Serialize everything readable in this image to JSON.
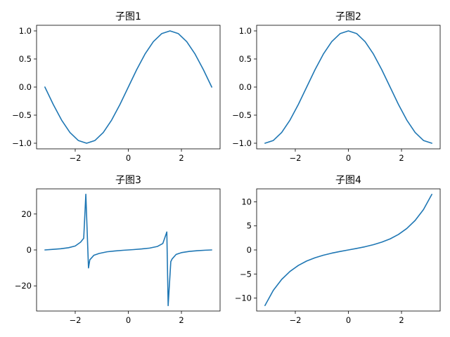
{
  "line_color": "#1f77b4",
  "chart_data": [
    {
      "type": "line",
      "title": "子图1",
      "function": "sin(x)",
      "xlim": [
        -3.4557,
        3.4557
      ],
      "ylim": [
        -1.1,
        1.1
      ],
      "xticks": [
        -2,
        0,
        2
      ],
      "yticks": [
        -1.0,
        -0.5,
        0.0,
        0.5,
        1.0
      ],
      "ytick_labels": [
        "−1.0",
        "−0.5",
        "0.0",
        "0.5",
        "1.0"
      ],
      "grid": false,
      "x": [
        -3.1416,
        -2.8274,
        -2.5133,
        -2.1991,
        -1.885,
        -1.5708,
        -1.2566,
        -0.9425,
        -0.6283,
        -0.3142,
        0.0,
        0.3142,
        0.6283,
        0.9425,
        1.2566,
        1.5708,
        1.885,
        2.1991,
        2.5133,
        2.8274,
        3.1416
      ],
      "y": [
        0.0,
        -0.309,
        -0.5878,
        -0.809,
        -0.9511,
        -1.0,
        -0.9511,
        -0.809,
        -0.5878,
        -0.309,
        0.0,
        0.309,
        0.5878,
        0.809,
        0.9511,
        1.0,
        0.9511,
        0.809,
        0.5878,
        0.309,
        0.0
      ]
    },
    {
      "type": "line",
      "title": "子图2",
      "function": "cos(x)",
      "xlim": [
        -3.4557,
        3.4557
      ],
      "ylim": [
        -1.1,
        1.1
      ],
      "xticks": [
        -2,
        0,
        2
      ],
      "yticks": [
        -1.0,
        -0.5,
        0.0,
        0.5,
        1.0
      ],
      "ytick_labels": [
        "−1.0",
        "−0.5",
        "0.0",
        "0.5",
        "1.0"
      ],
      "grid": false,
      "x": [
        -3.1416,
        -2.8274,
        -2.5133,
        -2.1991,
        -1.885,
        -1.5708,
        -1.2566,
        -0.9425,
        -0.6283,
        -0.3142,
        0.0,
        0.3142,
        0.6283,
        0.9425,
        1.2566,
        1.5708,
        1.885,
        2.1991,
        2.5133,
        2.8274,
        3.1416
      ],
      "y": [
        -1.0,
        -0.9511,
        -0.809,
        -0.5878,
        -0.309,
        0.0,
        0.309,
        0.5878,
        0.809,
        0.9511,
        1.0,
        0.9511,
        0.809,
        0.5878,
        0.309,
        0.0,
        -0.309,
        -0.5878,
        -0.809,
        -0.9511,
        -1.0
      ]
    },
    {
      "type": "line",
      "title": "子图3",
      "function": "tan(x)",
      "xlim": [
        -3.4557,
        3.4557
      ],
      "ylim": [
        -34,
        34
      ],
      "xticks": [
        -2,
        0,
        2
      ],
      "yticks": [
        -20,
        0,
        20
      ],
      "ytick_labels": [
        "−20",
        "0",
        "20"
      ],
      "grid": false,
      "x": [
        -3.1416,
        -2.85,
        -2.55,
        -2.25,
        -2.0,
        -1.8,
        -1.68,
        -1.6,
        -1.5,
        -1.45,
        -1.3,
        -1.1,
        -0.8,
        -0.5,
        -0.2,
        0.0,
        0.2,
        0.5,
        0.8,
        1.1,
        1.3,
        1.45,
        1.5,
        1.6,
        1.65,
        1.8,
        2.0,
        2.3,
        2.6,
        2.9,
        3.1416
      ],
      "y": [
        0.0,
        0.3,
        0.65,
        1.25,
        2.2,
        4.3,
        6.5,
        31.0,
        -10.0,
        -5.5,
        -3.0,
        -1.96,
        -1.03,
        -0.55,
        -0.2,
        0.0,
        0.2,
        0.55,
        1.03,
        1.96,
        3.6,
        10.0,
        -31.0,
        -6.5,
        -5.0,
        -2.5,
        -1.5,
        -0.8,
        -0.4,
        -0.15,
        0.0
      ]
    },
    {
      "type": "line",
      "title": "子图4",
      "function": "sinh(x)",
      "xlim": [
        -3.4557,
        3.4557
      ],
      "ylim": [
        -12.7,
        12.7
      ],
      "xticks": [
        -2,
        0,
        2
      ],
      "yticks": [
        -10,
        -5,
        0,
        5,
        10
      ],
      "ytick_labels": [
        "−10",
        "−5",
        "0",
        "5",
        "10"
      ],
      "grid": false,
      "x": [
        -3.1416,
        -2.8274,
        -2.5133,
        -2.1991,
        -1.885,
        -1.5708,
        -1.2566,
        -0.9425,
        -0.6283,
        -0.3142,
        0.0,
        0.3142,
        0.6283,
        0.9425,
        1.2566,
        1.5708,
        1.885,
        2.1991,
        2.5133,
        2.8274,
        3.1416
      ],
      "y": [
        -11.549,
        -8.4,
        -6.13,
        -4.46,
        -3.22,
        -2.3,
        -1.62,
        -1.09,
        -0.67,
        -0.32,
        0.0,
        0.32,
        0.67,
        1.09,
        1.62,
        2.3,
        3.22,
        4.46,
        6.13,
        8.4,
        11.549
      ]
    }
  ]
}
